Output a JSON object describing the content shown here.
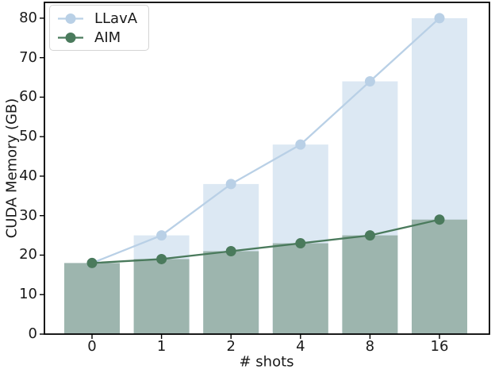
{
  "chart_data": {
    "type": "bar+line",
    "title": "",
    "xlabel": "# shots",
    "ylabel": "CUDA Memory (GB)",
    "categories": [
      "0",
      "1",
      "2",
      "4",
      "8",
      "16"
    ],
    "series": [
      {
        "name": "LLavA",
        "values": [
          18,
          25,
          38,
          48,
          64,
          80
        ],
        "line_color": "#b9d0e6",
        "fill_color": "#dce8f3"
      },
      {
        "name": "AIM",
        "values": [
          18,
          19,
          21,
          23,
          25,
          29
        ],
        "line_color": "#4a7a5c",
        "fill_color": "#9db5ae"
      }
    ],
    "yticks": [
      0,
      10,
      20,
      30,
      40,
      50,
      60,
      70,
      80
    ],
    "ylim": [
      0,
      84
    ],
    "grid": false,
    "legend": {
      "position": "upper left"
    },
    "axis_color": "#000000"
  }
}
